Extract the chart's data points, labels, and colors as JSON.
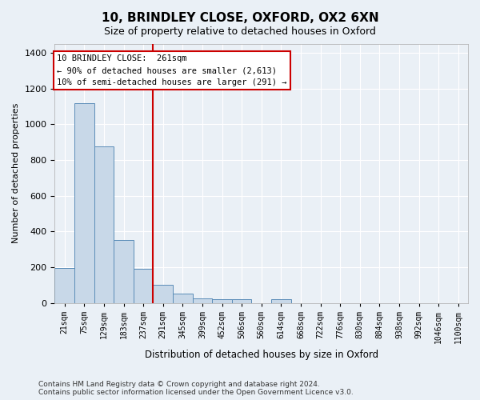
{
  "title": "10, BRINDLEY CLOSE, OXFORD, OX2 6XN",
  "subtitle": "Size of property relative to detached houses in Oxford",
  "xlabel": "Distribution of detached houses by size in Oxford",
  "ylabel": "Number of detached properties",
  "bar_color": "#c8d8e8",
  "bar_edge_color": "#5b8db8",
  "bar_categories": [
    "21sqm",
    "75sqm",
    "129sqm",
    "183sqm",
    "237sqm",
    "291sqm",
    "345sqm",
    "399sqm",
    "452sqm",
    "506sqm",
    "560sqm",
    "614sqm",
    "668sqm",
    "722sqm",
    "776sqm",
    "830sqm",
    "884sqm",
    "938sqm",
    "992sqm",
    "1046sqm",
    "1100sqm"
  ],
  "bar_values": [
    195,
    1120,
    875,
    350,
    190,
    100,
    50,
    25,
    18,
    18,
    0,
    18,
    0,
    0,
    0,
    0,
    0,
    0,
    0,
    0,
    0
  ],
  "vline_color": "#cc0000",
  "vline_position": 4.5,
  "annotation_text_line1": "10 BRINDLEY CLOSE:  261sqm",
  "annotation_text_line2": "← 90% of detached houses are smaller (2,613)",
  "annotation_text_line3": "10% of semi-detached houses are larger (291) →",
  "ylim": [
    0,
    1450
  ],
  "yticks": [
    0,
    200,
    400,
    600,
    800,
    1000,
    1200,
    1400
  ],
  "background_color": "#eaf0f6",
  "plot_background": "#eaf0f6",
  "footer_text": "Contains HM Land Registry data © Crown copyright and database right 2024.\nContains public sector information licensed under the Open Government Licence v3.0.",
  "title_fontsize": 11,
  "subtitle_fontsize": 9,
  "annotation_fontsize": 7.5,
  "footer_fontsize": 6.5,
  "ylabel_fontsize": 8,
  "xlabel_fontsize": 8.5
}
